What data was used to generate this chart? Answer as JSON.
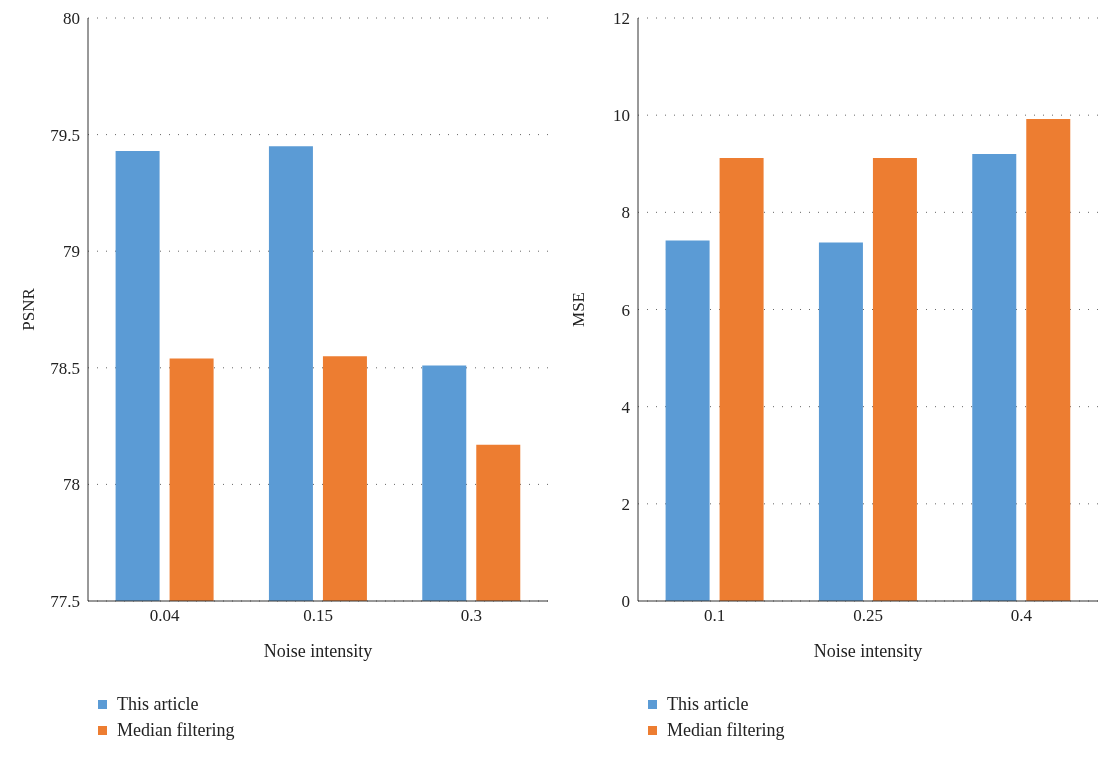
{
  "chart_data": [
    {
      "type": "bar",
      "xlabel": "Noise intensity",
      "ylabel": "PSNR",
      "categories": [
        "0.04",
        "0.15",
        "0.3"
      ],
      "series": [
        {
          "name": "This article",
          "color": "#5b9bd5",
          "values": [
            79.43,
            79.45,
            78.51
          ]
        },
        {
          "name": "Median filtering",
          "color": "#ed7d31",
          "values": [
            78.54,
            78.55,
            78.17
          ]
        }
      ],
      "ylim": [
        77.5,
        80
      ],
      "yticks": [
        77.5,
        78,
        78.5,
        79,
        79.5,
        80
      ],
      "grid": "y",
      "legend": "bottom left"
    },
    {
      "type": "bar",
      "xlabel": "Noise intensity",
      "ylabel": "MSE",
      "categories": [
        "0.1",
        "0.25",
        "0.4"
      ],
      "series": [
        {
          "name": "This article",
          "color": "#5b9bd5",
          "values": [
            7.42,
            7.38,
            9.2
          ]
        },
        {
          "name": "Median filtering",
          "color": "#ed7d31",
          "values": [
            9.12,
            9.12,
            9.92
          ]
        }
      ],
      "ylim": [
        0,
        12
      ],
      "yticks": [
        0,
        2,
        4,
        6,
        8,
        10,
        12
      ],
      "grid": "y",
      "legend": "bottom left"
    }
  ]
}
